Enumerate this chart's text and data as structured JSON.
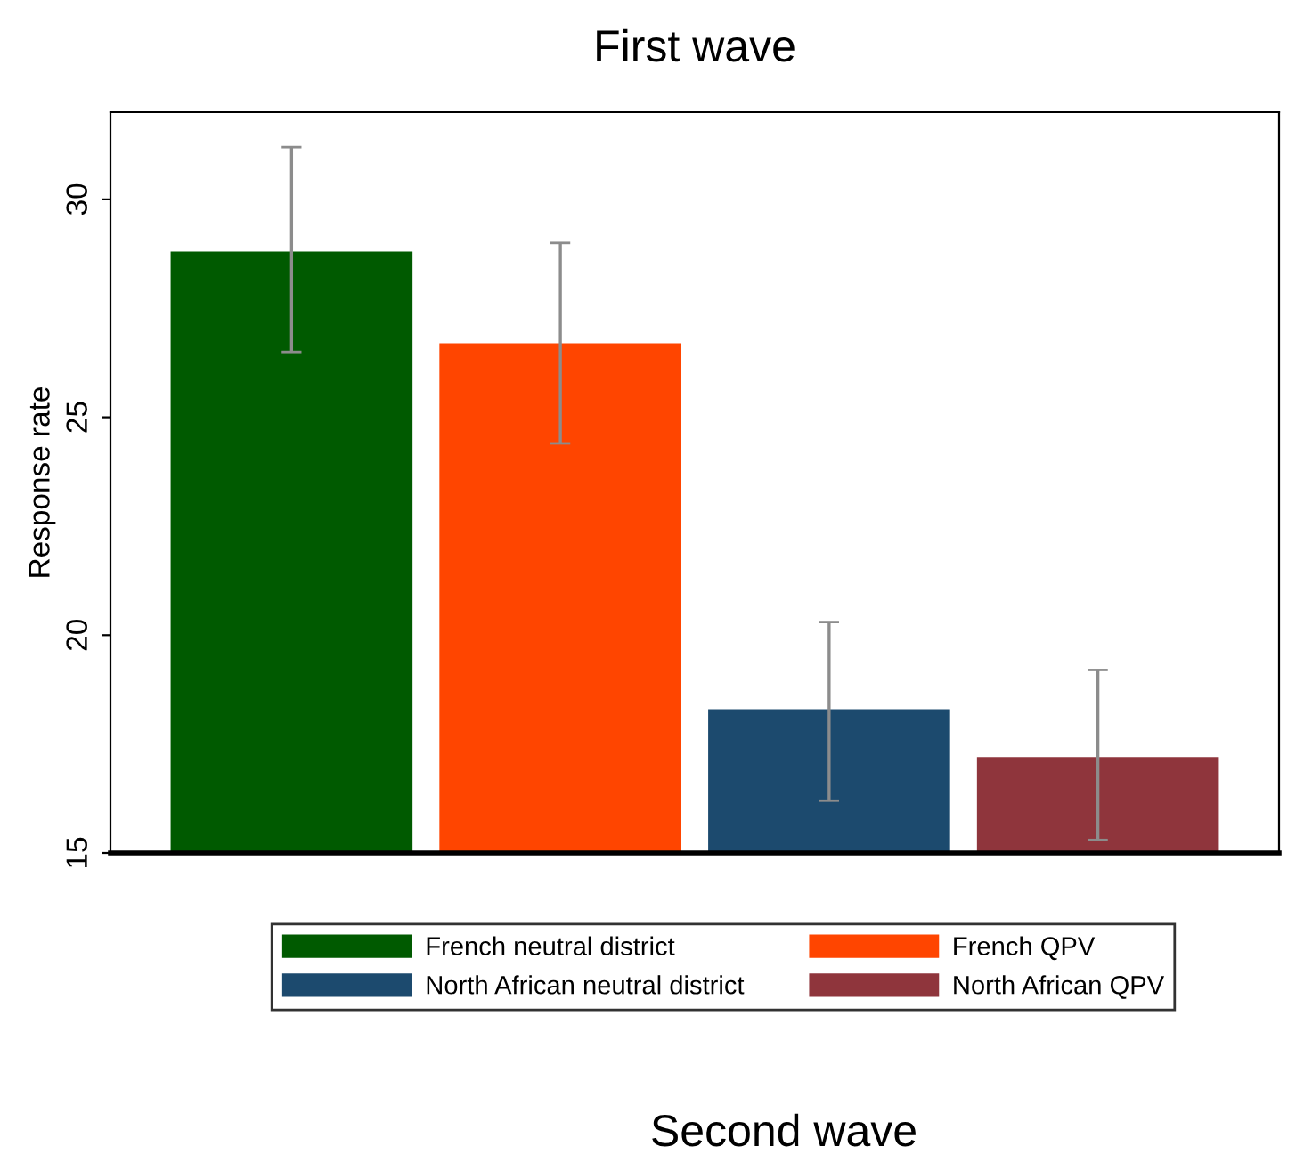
{
  "chart_data": {
    "type": "bar",
    "title": "First wave",
    "ylabel": "Response rate",
    "categories": [
      null
    ],
    "series": [
      {
        "name": "French neutral district",
        "color": "#005a00",
        "values": [
          28.8
        ],
        "errors": [
          [
            26.5,
            31.2
          ]
        ]
      },
      {
        "name": "French QPV",
        "color": "#ff4500",
        "values": [
          26.7
        ],
        "errors": [
          [
            24.4,
            29.0
          ]
        ]
      },
      {
        "name": "North African neutral district",
        "color": "#1c4a6e",
        "values": [
          18.3
        ],
        "errors": [
          [
            16.2,
            20.3
          ]
        ]
      },
      {
        "name": "North African QPV",
        "color": "#8f353c",
        "values": [
          17.2
        ],
        "errors": [
          [
            15.3,
            19.2
          ]
        ]
      }
    ],
    "ylim": [
      15,
      32
    ],
    "yticks": [
      15,
      20,
      25,
      30
    ],
    "grid": false,
    "legend": "bottom",
    "annotations": [
      "Second wave"
    ]
  }
}
